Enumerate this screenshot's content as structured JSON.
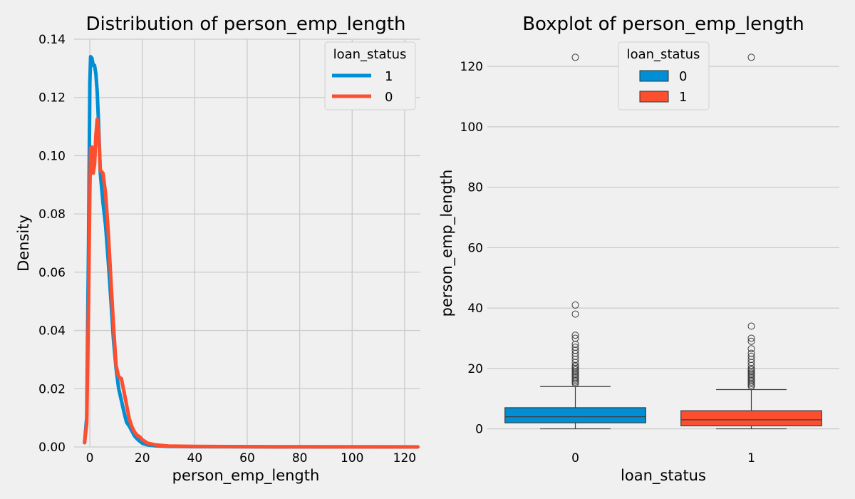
{
  "chart_data": [
    {
      "type": "line",
      "title": "Distribution of person_emp_length",
      "xlabel": "person_emp_length",
      "ylabel": "Density",
      "xlim": [
        -6,
        126
      ],
      "ylim": [
        0,
        0.14
      ],
      "xticks": [
        "0",
        "20",
        "40",
        "60",
        "80",
        "100",
        "120"
      ],
      "yticks": [
        "0.00",
        "0.02",
        "0.04",
        "0.06",
        "0.08",
        "0.10",
        "0.12",
        "0.14"
      ],
      "grid": true,
      "legend": {
        "title": "loan_status",
        "placement": "upper right"
      },
      "series": [
        {
          "name": "1",
          "color": "#008fd5",
          "x": [
            -2,
            -1.2,
            -0.5,
            0,
            0.3,
            0.8,
            1.3,
            1.8,
            2.3,
            2.8,
            3.3,
            4,
            5,
            6,
            7,
            8,
            9,
            10,
            11,
            12,
            13,
            14,
            15,
            16,
            17,
            18,
            19,
            20,
            22,
            25,
            30,
            40,
            60,
            80,
            100,
            125
          ],
          "y": [
            0.0015,
            0.01,
            0.07,
            0.125,
            0.134,
            0.1335,
            0.131,
            0.131,
            0.128,
            0.122,
            0.112,
            0.094,
            0.084,
            0.076,
            0.064,
            0.051,
            0.037,
            0.027,
            0.02,
            0.016,
            0.012,
            0.0085,
            0.0072,
            0.0055,
            0.0038,
            0.0028,
            0.002,
            0.0013,
            0.0007,
            0.0004,
            0.0002,
            0.0001,
            5e-05,
            3e-05,
            2e-05,
            1e-05
          ]
        },
        {
          "name": "0",
          "color": "#fc4f30",
          "x": [
            -2,
            -1.2,
            -0.5,
            0,
            0.3,
            0.8,
            1.3,
            1.8,
            2.3,
            2.8,
            3.3,
            4,
            5,
            6,
            7,
            8,
            9,
            10,
            11,
            12,
            13,
            14,
            15,
            16,
            17,
            18,
            19,
            20,
            22,
            25,
            30,
            40,
            60,
            80,
            100,
            125
          ],
          "y": [
            0.0015,
            0.008,
            0.05,
            0.088,
            0.1025,
            0.103,
            0.094,
            0.097,
            0.107,
            0.1125,
            0.109,
            0.095,
            0.094,
            0.087,
            0.074,
            0.058,
            0.042,
            0.028,
            0.024,
            0.0235,
            0.019,
            0.0145,
            0.0098,
            0.007,
            0.0052,
            0.004,
            0.0035,
            0.0025,
            0.0013,
            0.0007,
            0.0003,
            0.0002,
            0.0001,
            5e-05,
            3e-05,
            2e-05
          ]
        }
      ]
    },
    {
      "type": "box",
      "title": "Boxplot of person_emp_length",
      "xlabel": "loan_status",
      "ylabel": "person_emp_length",
      "categories": [
        "0",
        "1"
      ],
      "ylim": [
        -6,
        129
      ],
      "yticks": [
        "0",
        "20",
        "40",
        "60",
        "80",
        "100",
        "120"
      ],
      "grid": true,
      "legend": {
        "title": "loan_status",
        "placement": "upper center"
      },
      "series": [
        {
          "name": "0",
          "color": "#008fd5",
          "whisker_low": 0,
          "q1": 2,
          "median": 4,
          "q3": 7,
          "whisker_high": 14,
          "outliers": [
            15,
            15.5,
            16,
            16.5,
            17,
            17.5,
            18,
            18.5,
            19,
            19.5,
            20,
            20.5,
            21,
            22,
            23,
            24,
            25,
            26,
            27,
            28,
            30,
            31,
            38,
            41,
            123
          ]
        },
        {
          "name": "1",
          "color": "#fc4f30",
          "whisker_low": 0,
          "q1": 1,
          "median": 3,
          "q3": 6,
          "whisker_high": 13,
          "outliers": [
            14,
            14.5,
            15,
            15.5,
            16,
            16.5,
            17,
            17.5,
            18,
            18.5,
            19,
            19.5,
            20,
            21,
            22,
            23,
            24,
            25,
            26.5,
            29,
            30,
            34,
            123
          ]
        }
      ]
    }
  ]
}
